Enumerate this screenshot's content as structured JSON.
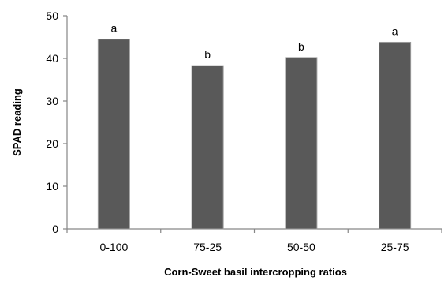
{
  "chart_data": {
    "type": "bar",
    "categories": [
      "0-100",
      "75-25",
      "50-50",
      "25-75"
    ],
    "values": [
      44.5,
      38.3,
      40.2,
      43.8
    ],
    "data_labels": [
      "a",
      "b",
      "b",
      "a"
    ],
    "xlabel": "Corn-Sweet basil intercropping ratios",
    "ylabel": "SPAD reading",
    "ylim": [
      0,
      50
    ],
    "yticks": [
      0,
      10,
      20,
      30,
      40,
      50
    ],
    "grid": false,
    "bar_color": "#595959",
    "axis_color": "#868686"
  }
}
